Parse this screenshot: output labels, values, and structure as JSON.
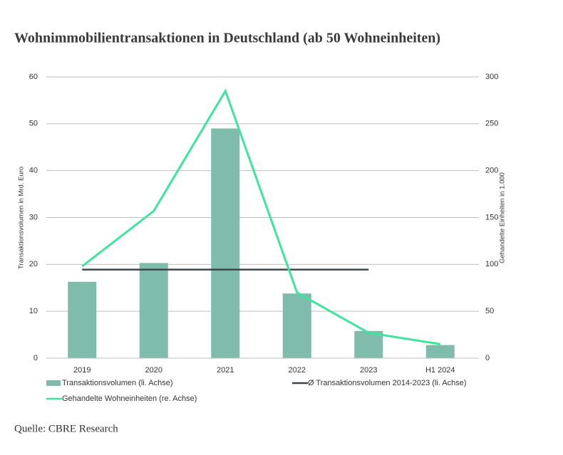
{
  "chart_data": {
    "type": "bar",
    "title": "Wohnimmobilientransaktionen in Deutschland (ab 50 Wohneinheiten)",
    "source": "Quelle: CBRE Research",
    "ylabel": "Transaktionsvolumen in Mrd. Euro",
    "y2label": "Gehandelte Einheiten in 1.000",
    "categories": [
      "2019",
      "2020",
      "2021",
      "2022",
      "2023",
      "H1 2024"
    ],
    "series": [
      {
        "name": "Transaktionsvolumen (li. Achse)",
        "type": "bar",
        "color": "#7fbcab",
        "values": [
          16.3,
          20.3,
          49,
          13.8,
          5.8,
          2.8
        ]
      },
      {
        "name": "Ø Transaktionsvolumen 2014-2023 (li. Achse)",
        "type": "line",
        "color": "#3d474c",
        "values": [
          18.9,
          18.9,
          18.9,
          18.9,
          18.9,
          null
        ]
      },
      {
        "name": "Gehandelte Wohneinheiten (re. Achse)",
        "type": "line",
        "axis": "y2",
        "color": "#3ee59d",
        "values": [
          98,
          157,
          285,
          70,
          27,
          15
        ]
      }
    ],
    "ylim": [
      0,
      60
    ],
    "yticks": [
      0,
      10,
      20,
      30,
      40,
      50,
      60
    ],
    "y2lim": [
      0,
      300
    ],
    "y2ticks": [
      0,
      50,
      100,
      150,
      200,
      250,
      300
    ],
    "grid": true
  }
}
